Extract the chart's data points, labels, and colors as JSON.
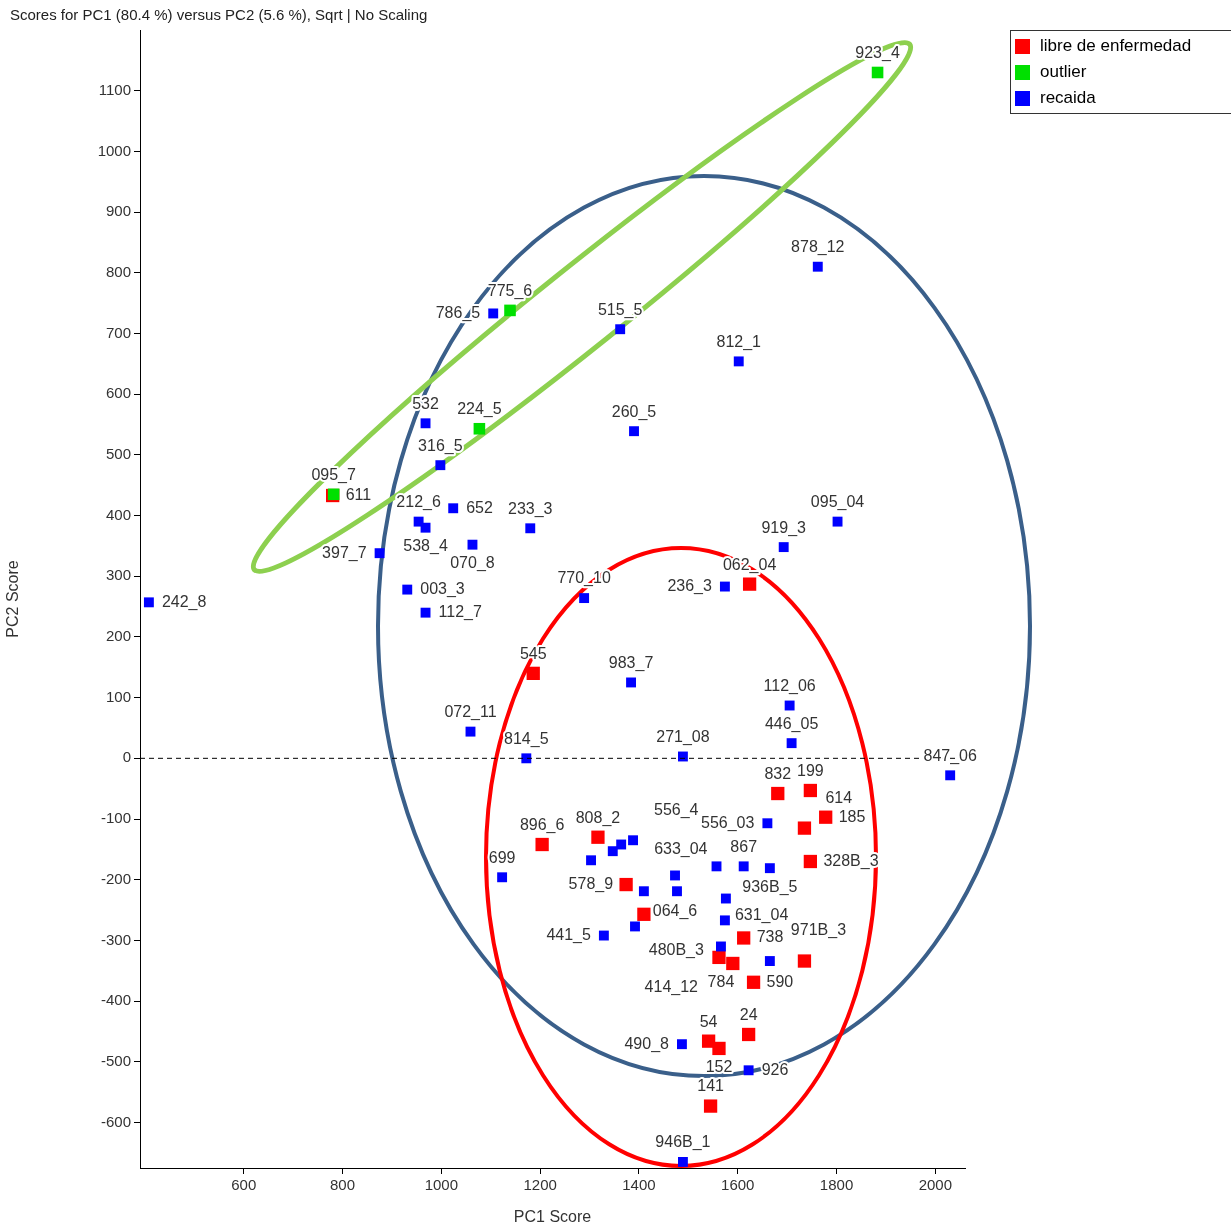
{
  "chart_data": {
    "type": "scatter",
    "title": "Scores for PC1 (80.4 %) versus PC2 (5.6 %), Sqrt | No Scaling",
    "xlabel": "PC1 Score",
    "ylabel": "PC2 Score",
    "xlim": [
      390,
      2060
    ],
    "xticks": [
      600,
      800,
      1000,
      1200,
      1400,
      1600,
      1800,
      2000
    ],
    "ylim": [
      -675,
      1200
    ],
    "yticks": [
      -600,
      -500,
      -400,
      -300,
      -200,
      -100,
      0,
      100,
      200,
      300,
      400,
      500,
      600,
      700,
      800,
      900,
      1000,
      1100
    ],
    "marker": "square",
    "legend": "top right",
    "grid": false,
    "ref_lines": [
      {
        "axis": "y",
        "value": 0,
        "color": "#000000",
        "line_style": "dashed"
      }
    ],
    "series": [
      {
        "name": "libre de enfermedad",
        "color": "#ff0000",
        "x": [
          780,
          1624,
          1186,
          1681,
          1747,
          1778,
          1735,
          1204,
          1317,
          1747,
          1374,
          1410,
          1612,
          1562,
          1590,
          1632,
          1735,
          1541,
          1562,
          1622,
          1545
        ],
        "values": [
          433,
          287,
          140,
          -58,
          -53,
          -97,
          -115,
          -142,
          -130,
          -170,
          -208,
          -257,
          -296,
          -328,
          -338,
          -369,
          -334,
          -466,
          -478,
          -455,
          -573
        ]
      },
      {
        "name": "outlier",
        "color": "#00e000",
        "x": [
          1883,
          1139,
          1077,
          782
        ],
        "values": [
          1130,
          738,
          543,
          435
        ]
      },
      {
        "name": "recaida",
        "color": "#0000ff",
        "x": [
          408,
          1105,
          1362,
          1762,
          1602,
          968,
          1390,
          998,
          954,
          1024,
          968,
          875,
          1180,
          1063,
          931,
          968,
          1802,
          1693,
          1574,
          1289,
          1384,
          1705,
          1059,
          1709,
          1172,
          1489,
          2030,
          1660,
          1388,
          1364,
          1347,
          1303,
          1123,
          1557,
          1612,
          1665,
          1473,
          1477,
          1410,
          1329,
          1392,
          1576,
          1574,
          1566,
          1665,
          1487,
          1622,
          1489
        ],
        "values": [
          257,
          733,
          707,
          810,
          654,
          552,
          539,
          483,
          390,
          412,
          380,
          338,
          379,
          352,
          278,
          240,
          390,
          348,
          283,
          264,
          125,
          87,
          44,
          25,
          0,
          3,
          -28,
          -107,
          -135,
          -142,
          -153,
          -168,
          -196,
          -178,
          -178,
          -181,
          -193,
          -219,
          -219,
          -292,
          -277,
          -231,
          -267,
          -310,
          -334,
          -471,
          -514,
          -665
        ]
      }
    ],
    "annotations": [
      {
        "text": "923_4",
        "x": 1883,
        "y": 1130
      },
      {
        "text": "775_6",
        "x": 1139,
        "y": 738
      },
      {
        "text": "786_5",
        "x": 1105,
        "y": 733
      },
      {
        "text": "095_7",
        "x": 782,
        "y": 435
      },
      {
        "text": "611",
        "x": 780,
        "y": 433
      },
      {
        "text": "224_5",
        "x": 1077,
        "y": 543
      },
      {
        "text": "532",
        "x": 968,
        "y": 552
      },
      {
        "text": "316_5",
        "x": 998,
        "y": 483
      },
      {
        "text": "212_6",
        "x": 954,
        "y": 390
      },
      {
        "text": "652",
        "x": 1024,
        "y": 412
      },
      {
        "text": "538_4",
        "x": 968,
        "y": 380
      },
      {
        "text": "397_7",
        "x": 875,
        "y": 338
      },
      {
        "text": "003_3",
        "x": 931,
        "y": 278
      },
      {
        "text": "112_7",
        "x": 968,
        "y": 240
      },
      {
        "text": "070_8",
        "x": 1063,
        "y": 352
      },
      {
        "text": "233_3",
        "x": 1180,
        "y": 379
      },
      {
        "text": "242_8",
        "x": 408,
        "y": 257
      },
      {
        "text": "515_5",
        "x": 1362,
        "y": 707
      },
      {
        "text": "878_12",
        "x": 1762,
        "y": 810
      },
      {
        "text": "812_1",
        "x": 1602,
        "y": 654
      },
      {
        "text": "260_5",
        "x": 1390,
        "y": 539
      },
      {
        "text": "095_04",
        "x": 1802,
        "y": 390
      },
      {
        "text": "919_3",
        "x": 1693,
        "y": 348
      },
      {
        "text": "062_04",
        "x": 1624,
        "y": 287
      },
      {
        "text": "236_3",
        "x": 1574,
        "y": 283
      },
      {
        "text": "770_10",
        "x": 1289,
        "y": 264
      },
      {
        "text": "545",
        "x": 1186,
        "y": 140
      },
      {
        "text": "983_7",
        "x": 1384,
        "y": 125
      },
      {
        "text": "112_06",
        "x": 1705,
        "y": 87
      },
      {
        "text": "072_11",
        "x": 1059,
        "y": 44
      },
      {
        "text": "446_05",
        "x": 1709,
        "y": 25
      },
      {
        "text": "814_5",
        "x": 1172,
        "y": 0
      },
      {
        "text": "271_08",
        "x": 1489,
        "y": 3
      },
      {
        "text": "847_06",
        "x": 2030,
        "y": -28
      },
      {
        "text": "832",
        "x": 1681,
        "y": -58
      },
      {
        "text": "199",
        "x": 1747,
        "y": -53
      },
      {
        "text": "185",
        "x": 1778,
        "y": -97
      },
      {
        "text": "614",
        "x": 1735,
        "y": -115
      },
      {
        "text": "556_03",
        "x": 1660,
        "y": -107
      },
      {
        "text": "936B_5",
        "x": 1665,
        "y": -181
      },
      {
        "text": "328B_3",
        "x": 1747,
        "y": -170
      },
      {
        "text": "867",
        "x": 1612,
        "y": -178
      },
      {
        "text": "633_04",
        "x": 1557,
        "y": -178
      },
      {
        "text": "064_6",
        "x": 1473,
        "y": -193
      },
      {
        "text": "896_6",
        "x": 1204,
        "y": -142
      },
      {
        "text": "808_2",
        "x": 1317,
        "y": -130
      },
      {
        "text": "556_4",
        "x": 1388,
        "y": -135
      },
      {
        "text": "699",
        "x": 1123,
        "y": -196
      },
      {
        "text": "578_9",
        "x": 1374,
        "y": -208
      },
      {
        "text": "441_5",
        "x": 1329,
        "y": -292
      },
      {
        "text": "631_04",
        "x": 1576,
        "y": -231
      },
      {
        "text": "480B_3",
        "x": 1574,
        "y": -267
      },
      {
        "text": "738",
        "x": 1612,
        "y": -296
      },
      {
        "text": "784",
        "x": 1566,
        "y": -310
      },
      {
        "text": "414_12",
        "x": 1562,
        "y": -328
      },
      {
        "text": "971B_3",
        "x": 1665,
        "y": -334
      },
      {
        "text": "590",
        "x": 1632,
        "y": -369
      },
      {
        "text": "490_8",
        "x": 1487,
        "y": -471
      },
      {
        "text": "54",
        "x": 1541,
        "y": -466
      },
      {
        "text": "152",
        "x": 1562,
        "y": -478
      },
      {
        "text": "24",
        "x": 1622,
        "y": -455
      },
      {
        "text": "926",
        "x": 1622,
        "y": -514
      },
      {
        "text": "141",
        "x": 1545,
        "y": -573
      },
      {
        "text": "946B_1",
        "x": 1489,
        "y": -665
      }
    ]
  }
}
